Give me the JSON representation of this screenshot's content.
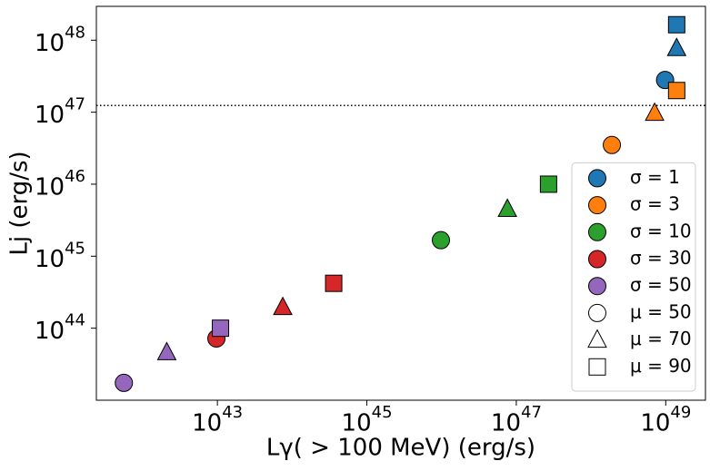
{
  "chart_data": {
    "type": "scatter",
    "xlabel": "Lγ( > 100 MeV) (erg/s)",
    "ylabel": "Lj (erg/s)",
    "xscale": "log",
    "yscale": "log",
    "xlim": [
      2.4e+41,
      3.4e+49
    ],
    "ylim": [
      1e+43,
      2.95e+48
    ],
    "xticks": [
      {
        "value": 1e+43,
        "label": "10^43"
      },
      {
        "value": 1e+45,
        "label": "10^45"
      },
      {
        "value": 1e+47,
        "label": "10^47"
      },
      {
        "value": 1e+49,
        "label": "10^49"
      }
    ],
    "yticks": [
      {
        "value": 1e+44,
        "label": "10^44"
      },
      {
        "value": 1e+45,
        "label": "10^45"
      },
      {
        "value": 1e+46,
        "label": "10^46"
      },
      {
        "value": 1e+47,
        "label": "10^47"
      },
      {
        "value": 1e+48,
        "label": "10^48"
      }
    ],
    "hline": 1.24e+47,
    "legend": "lower right",
    "marker_legend": [
      {
        "name": "μ = 50",
        "marker": "circle"
      },
      {
        "name": "μ = 70",
        "marker": "triangle"
      },
      {
        "name": "μ = 90",
        "marker": "square"
      }
    ],
    "series": [
      {
        "name": "σ = 1",
        "color": "#1f77b4",
        "x": [
          9.8e+48,
          1.4e+49,
          1.4e+49
        ],
        "y": [
          2.8e+47,
          7.7e+47,
          1.64e+48
        ]
      },
      {
        "name": "σ = 3",
        "color": "#ff7f0e",
        "x": [
          1.9e+48,
          7.1e+48,
          1.4e+49
        ],
        "y": [
          3.5e+46,
          9.7e+46,
          2e+47
        ]
      },
      {
        "name": "σ = 10",
        "color": "#2ca02c",
        "x": [
          9.8e+45,
          7.6e+46,
          2.7e+47
        ],
        "y": [
          1.67e+45,
          4.5e+45,
          1e+46
        ]
      },
      {
        "name": "σ = 30",
        "color": "#d62728",
        "x": [
          9.7e+42,
          7.5e+43,
          3.6e+44
        ],
        "y": [
          7.2e+43,
          1.95e+44,
          4.2e+44
        ]
      },
      {
        "name": "σ = 50",
        "color": "#9467bd",
        "x": [
          5.6e+41,
          2.1e+42,
          1.1e+43
        ],
        "y": [
          1.74e+43,
          4.6e+43,
          1e+44
        ]
      }
    ]
  }
}
